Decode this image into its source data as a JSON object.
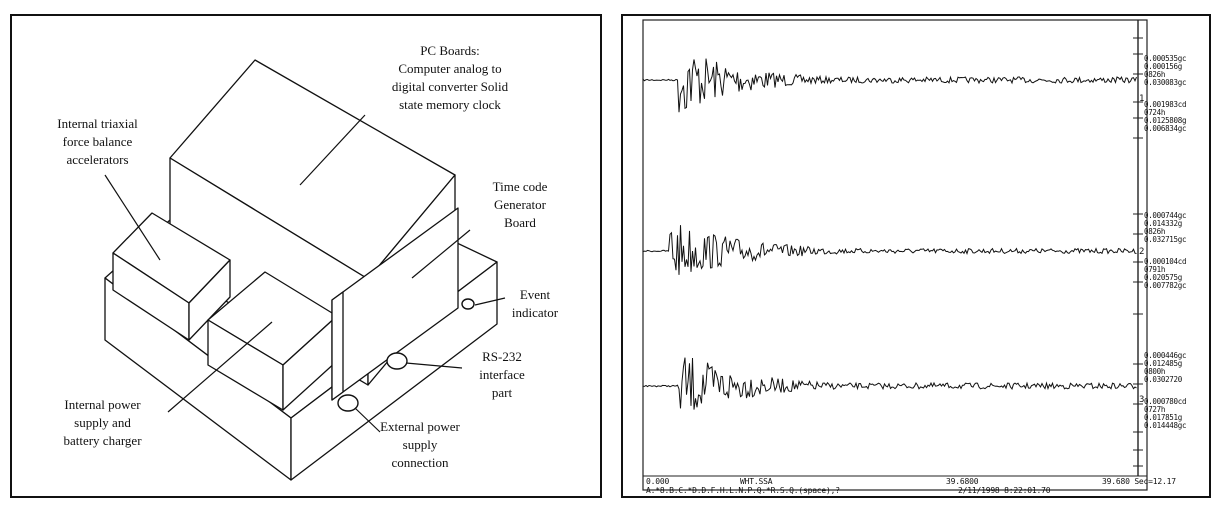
{
  "diagram": {
    "labels": {
      "pc_boards": [
        "PC Boards:",
        "Computer analog to",
        "digital converter Solid",
        "state memory clock"
      ],
      "accelerators": [
        "Internal triaxial",
        "force balance",
        "accelerators"
      ],
      "time_code": [
        "Time code",
        "Generator",
        "Board"
      ],
      "event": [
        "Event",
        "indicator"
      ],
      "rs232": [
        "RS-232",
        "interface",
        "part"
      ],
      "internal_power": [
        "Internal power",
        "supply and",
        "battery charger"
      ],
      "external_power": [
        "External power",
        "supply",
        "connection"
      ]
    }
  },
  "seismogram": {
    "channel_values": [
      [
        "0.000535gc",
        "0.000156g",
        "0826h",
        "0.030083gc",
        "0.001983cd",
        "0724h",
        "0.0125808g",
        "0.006834gc"
      ],
      [
        "0.000744gc",
        "0.014332g",
        "0826h",
        "0.032715gc",
        "0.000104cd",
        "0791h",
        "0.020575g",
        "0.007782gc"
      ],
      [
        "0.000446gc",
        "0.012485g",
        "0800h",
        "0.0302720",
        "0.000780cd",
        "0727h",
        "0.017851g",
        "0.014448gc"
      ]
    ],
    "channel_numbers": [
      "1",
      "2",
      "3"
    ],
    "footer": {
      "start": "0.000",
      "file": "WHT.SSA",
      "mid": "39.6800",
      "end": "39.680 Sec=12.17",
      "commands": "A.*8.B.C.*D.D.F.H.L.N.P.Q.*R.S.Q.(space),?",
      "date_time": "2/11/1998   8:22:01.70"
    }
  }
}
